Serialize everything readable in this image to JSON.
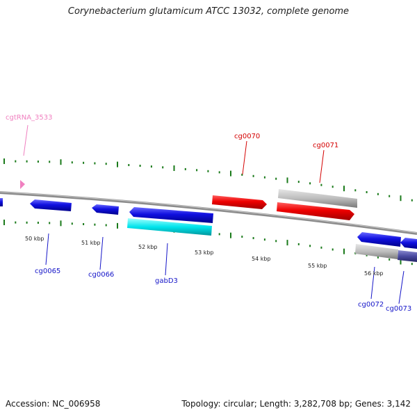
{
  "title": "Corynebacterium glutamicum ATCC 13032, complete genome",
  "footer": {
    "accession": "Accession: NC_006958",
    "stats": "Topology: circular; Length: 3,282,708 bp; Genes: 3,142"
  },
  "colors": {
    "cds_forward": "#d40000",
    "cds_reverse": "#1414c8",
    "gene_track": "#bdbdbd",
    "highlight": "#00e4ec",
    "trna": "#f080c0",
    "ticks": "#1a7a1a",
    "backbone": "#8c8c8c"
  },
  "scale_labels": [
    "50 kbp",
    "51 kbp",
    "52 kbp",
    "53 kbp",
    "54 kbp",
    "55 kbp",
    "56 kbp"
  ],
  "gene_labels": {
    "trna": "cgtRNA_3533",
    "cg0070": "cg0070",
    "cg0071": "cg0071",
    "cg0065": "cg0065",
    "cg0066": "cg0066",
    "gabD3": "gabD3",
    "cg0072": "cg0072",
    "cg0073": "cg0073"
  }
}
